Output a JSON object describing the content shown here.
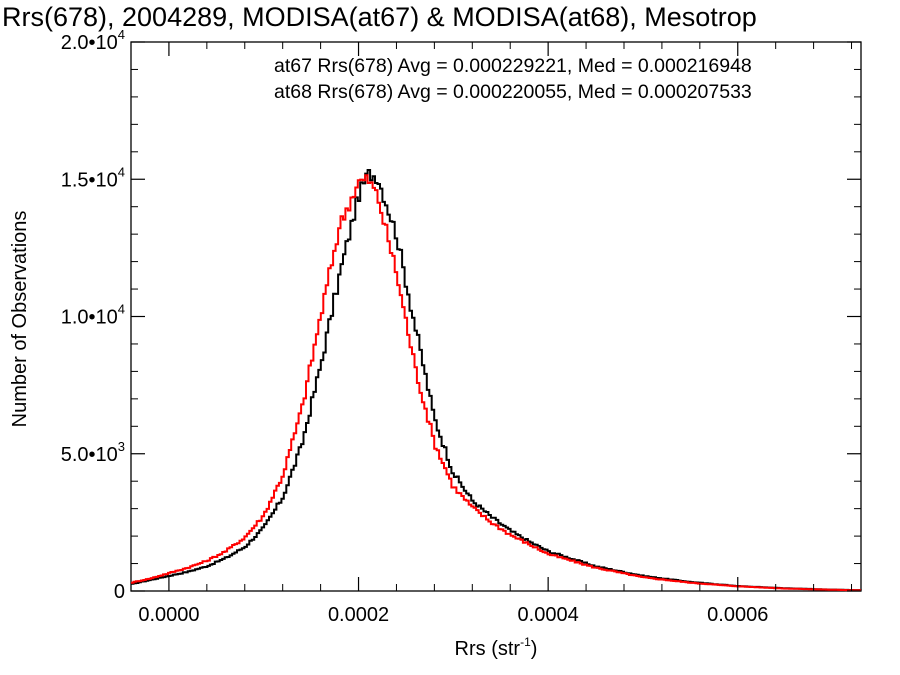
{
  "chart_data": {
    "type": "line",
    "title": "Rrs(678), 2004289, MODISA(at67) & MODISA(at68), Mesotrop",
    "xlabel": "Rrs (str",
    "xlabel_sup": "-1",
    "xlabel_close": ")",
    "ylabel": "Number of Observations",
    "xlim": [
      -4e-05,
      0.00073
    ],
    "ylim": [
      0,
      20000
    ],
    "grid": false,
    "legend": "top-right",
    "x_ticks": [
      {
        "value": 0.0,
        "label": "0.0000"
      },
      {
        "value": 0.0002,
        "label": "0.0002"
      },
      {
        "value": 0.0004,
        "label": "0.0004"
      },
      {
        "value": 0.0006,
        "label": "0.0006"
      }
    ],
    "y_ticks": [
      {
        "value": 0,
        "mant": "0",
        "exp": ""
      },
      {
        "value": 5000,
        "mant": "5.0•10",
        "exp": "3"
      },
      {
        "value": 10000,
        "mant": "1.0•10",
        "exp": "4"
      },
      {
        "value": 15000,
        "mant": "1.5•10",
        "exp": "4"
      },
      {
        "value": 20000,
        "mant": "2.0•10",
        "exp": "4"
      }
    ],
    "annotations": [
      {
        "text": "at67 Rrs(678) Avg = 0.000229221, Med = 0.000216948",
        "color": "#000000"
      },
      {
        "text": "at68 Rrs(678) Avg = 0.000220055, Med = 0.000207533",
        "color": "#ff0000"
      }
    ],
    "series": [
      {
        "color": "#000000",
        "x": [
          -4e-05,
          -2e-05,
          0.0,
          2e-05,
          4e-05,
          6e-05,
          8e-05,
          0.0001,
          0.00012,
          0.00014,
          0.00016,
          0.00018,
          0.0002,
          0.00021,
          0.00022,
          0.00024,
          0.00026,
          0.00028,
          0.0003,
          0.00032,
          0.00034,
          0.00036,
          0.00038,
          0.0004,
          0.00045,
          0.0005,
          0.00055,
          0.0006,
          0.00065,
          0.0007,
          0.00073
        ],
        "y": [
          250,
          400,
          550,
          700,
          900,
          1200,
          1600,
          2300,
          3400,
          5300,
          8200,
          11500,
          14400,
          15200,
          15100,
          13000,
          9600,
          6300,
          4300,
          3300,
          2700,
          2200,
          1800,
          1450,
          900,
          550,
          330,
          180,
          100,
          50,
          30
        ]
      },
      {
        "color": "#ff0000",
        "x": [
          -4e-05,
          -2e-05,
          0.0,
          2e-05,
          4e-05,
          6e-05,
          8e-05,
          0.0001,
          0.00012,
          0.00014,
          0.00016,
          0.00018,
          0.0002,
          0.00021,
          0.00022,
          0.00024,
          0.00026,
          0.00028,
          0.0003,
          0.00032,
          0.00034,
          0.00036,
          0.00038,
          0.0004,
          0.00045,
          0.0005,
          0.00055,
          0.0006,
          0.00065,
          0.0007,
          0.00073
        ],
        "y": [
          300,
          450,
          650,
          850,
          1100,
          1450,
          1950,
          2750,
          4200,
          6600,
          10000,
          13300,
          14900,
          15000,
          14400,
          11600,
          8100,
          5400,
          3800,
          3050,
          2500,
          2050,
          1700,
          1350,
          850,
          500,
          300,
          170,
          90,
          45,
          25
        ]
      }
    ]
  }
}
